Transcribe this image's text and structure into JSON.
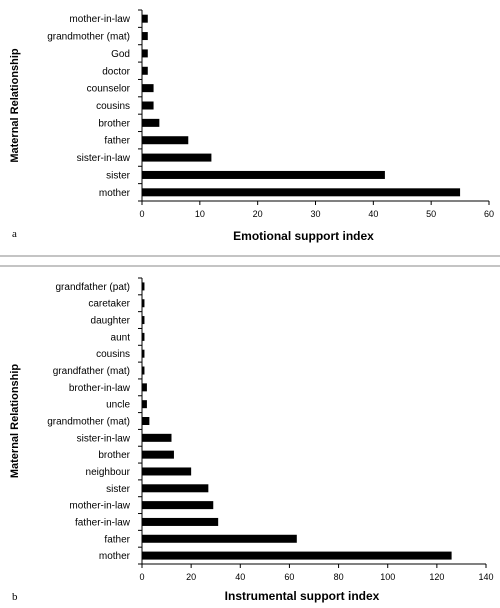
{
  "chart_data": [
    {
      "type": "bar",
      "orientation": "horizontal",
      "panel_label": "a",
      "categories": [
        "mother",
        "sister",
        "sister-in-law",
        "father",
        "brother",
        "cousins",
        "counselor",
        "doctor",
        "God",
        "grandmother (mat)",
        "mother-in-law"
      ],
      "values": [
        55,
        42,
        12,
        8,
        3,
        2,
        2,
        1,
        1,
        1,
        1
      ],
      "xlabel": "Emotional support index",
      "ylabel": "Maternal Relationship",
      "xlim": [
        0,
        60
      ],
      "xticks": [
        0,
        10,
        20,
        30,
        40,
        50,
        60
      ],
      "bar_color": "#000000",
      "grid": false
    },
    {
      "type": "bar",
      "orientation": "horizontal",
      "panel_label": "b",
      "categories": [
        "mother",
        "father",
        "father-in-law",
        "mother-in-law",
        "sister",
        "neighbour",
        "brother",
        "sister-in-law",
        "grandmother (mat)",
        "uncle",
        "brother-in-law",
        "grandfather (mat)",
        "cousins",
        "aunt",
        "daughter",
        "caretaker",
        "grandfather (pat)"
      ],
      "values": [
        126,
        63,
        31,
        29,
        27,
        20,
        13,
        12,
        3,
        2,
        2,
        1,
        1,
        1,
        1,
        1,
        1
      ],
      "xlabel": "Instrumental support index",
      "ylabel": "Maternal Relationship",
      "xlim": [
        0,
        140
      ],
      "xticks": [
        0,
        20,
        40,
        60,
        80,
        100,
        120,
        140
      ],
      "bar_color": "#000000",
      "grid": false
    }
  ]
}
